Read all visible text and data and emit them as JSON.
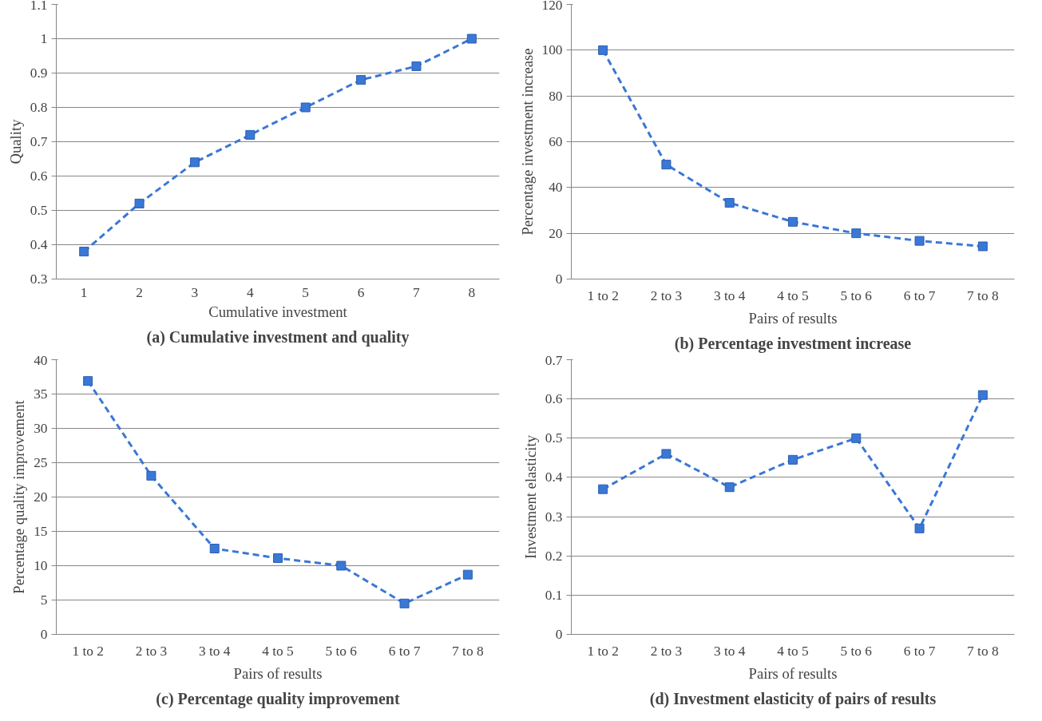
{
  "chart_data": [
    {
      "type": "line",
      "title": "(a) Cumulative investment and quality",
      "xlabel": "Cumulative investment",
      "ylabel": "Quality",
      "categories": [
        "1",
        "2",
        "3",
        "4",
        "5",
        "6",
        "7",
        "8"
      ],
      "series": [
        {
          "color": "#3a77d6",
          "values": [
            0.38,
            0.52,
            0.64,
            0.72,
            0.8,
            0.88,
            0.92,
            1.0
          ]
        }
      ],
      "ylim": [
        0.3,
        1.1
      ],
      "yticks": [
        0.3,
        0.4,
        0.5,
        0.6,
        0.7,
        0.8,
        0.9,
        1,
        1.1
      ],
      "grid": "y",
      "marker": "square",
      "line_style": "dashed"
    },
    {
      "type": "line",
      "title": "(b) Percentage investment increase",
      "xlabel": "Pairs of results",
      "ylabel": "Percentage investment increase",
      "categories": [
        "1 to 2",
        "2 to 3",
        "3 to 4",
        "4 to 5",
        "5 to 6",
        "6 to 7",
        "7 to 8"
      ],
      "series": [
        {
          "color": "#3a77d6",
          "values": [
            100,
            50,
            33.3,
            25,
            20,
            16.7,
            14.3
          ]
        }
      ],
      "ylim": [
        0,
        120
      ],
      "yticks": [
        0,
        20,
        40,
        60,
        80,
        100,
        120
      ],
      "grid": "y",
      "marker": "square",
      "line_style": "dashed"
    },
    {
      "type": "line",
      "title": "(c) Percentage quality improvement",
      "xlabel": "Pairs of results",
      "ylabel": "Percentage quality improvement",
      "categories": [
        "1 to 2",
        "2 to 3",
        "3 to 4",
        "4 to 5",
        "5 to 6",
        "6 to 7",
        "7 to 8"
      ],
      "series": [
        {
          "color": "#3a77d6",
          "values": [
            36.9,
            23.1,
            12.5,
            11.1,
            10,
            4.5,
            8.7
          ]
        }
      ],
      "ylim": [
        0,
        40
      ],
      "yticks": [
        0,
        5,
        10,
        15,
        20,
        25,
        30,
        35,
        40
      ],
      "grid": "y",
      "marker": "square",
      "line_style": "dashed"
    },
    {
      "type": "line",
      "title": "(d) Investment elasticity of pairs of results",
      "xlabel": "Pairs of results",
      "ylabel": "Investment elasticity",
      "categories": [
        "1 to 2",
        "2 to 3",
        "3 to 4",
        "4 to 5",
        "5 to 6",
        "6 to 7",
        "7 to 8"
      ],
      "series": [
        {
          "color": "#3a77d6",
          "values": [
            0.37,
            0.46,
            0.375,
            0.445,
            0.5,
            0.27,
            0.61
          ]
        }
      ],
      "ylim": [
        0,
        0.7
      ],
      "yticks": [
        0,
        0.1,
        0.2,
        0.3,
        0.4,
        0.5,
        0.6,
        0.7
      ],
      "grid": "y",
      "marker": "square",
      "line_style": "dashed"
    }
  ]
}
